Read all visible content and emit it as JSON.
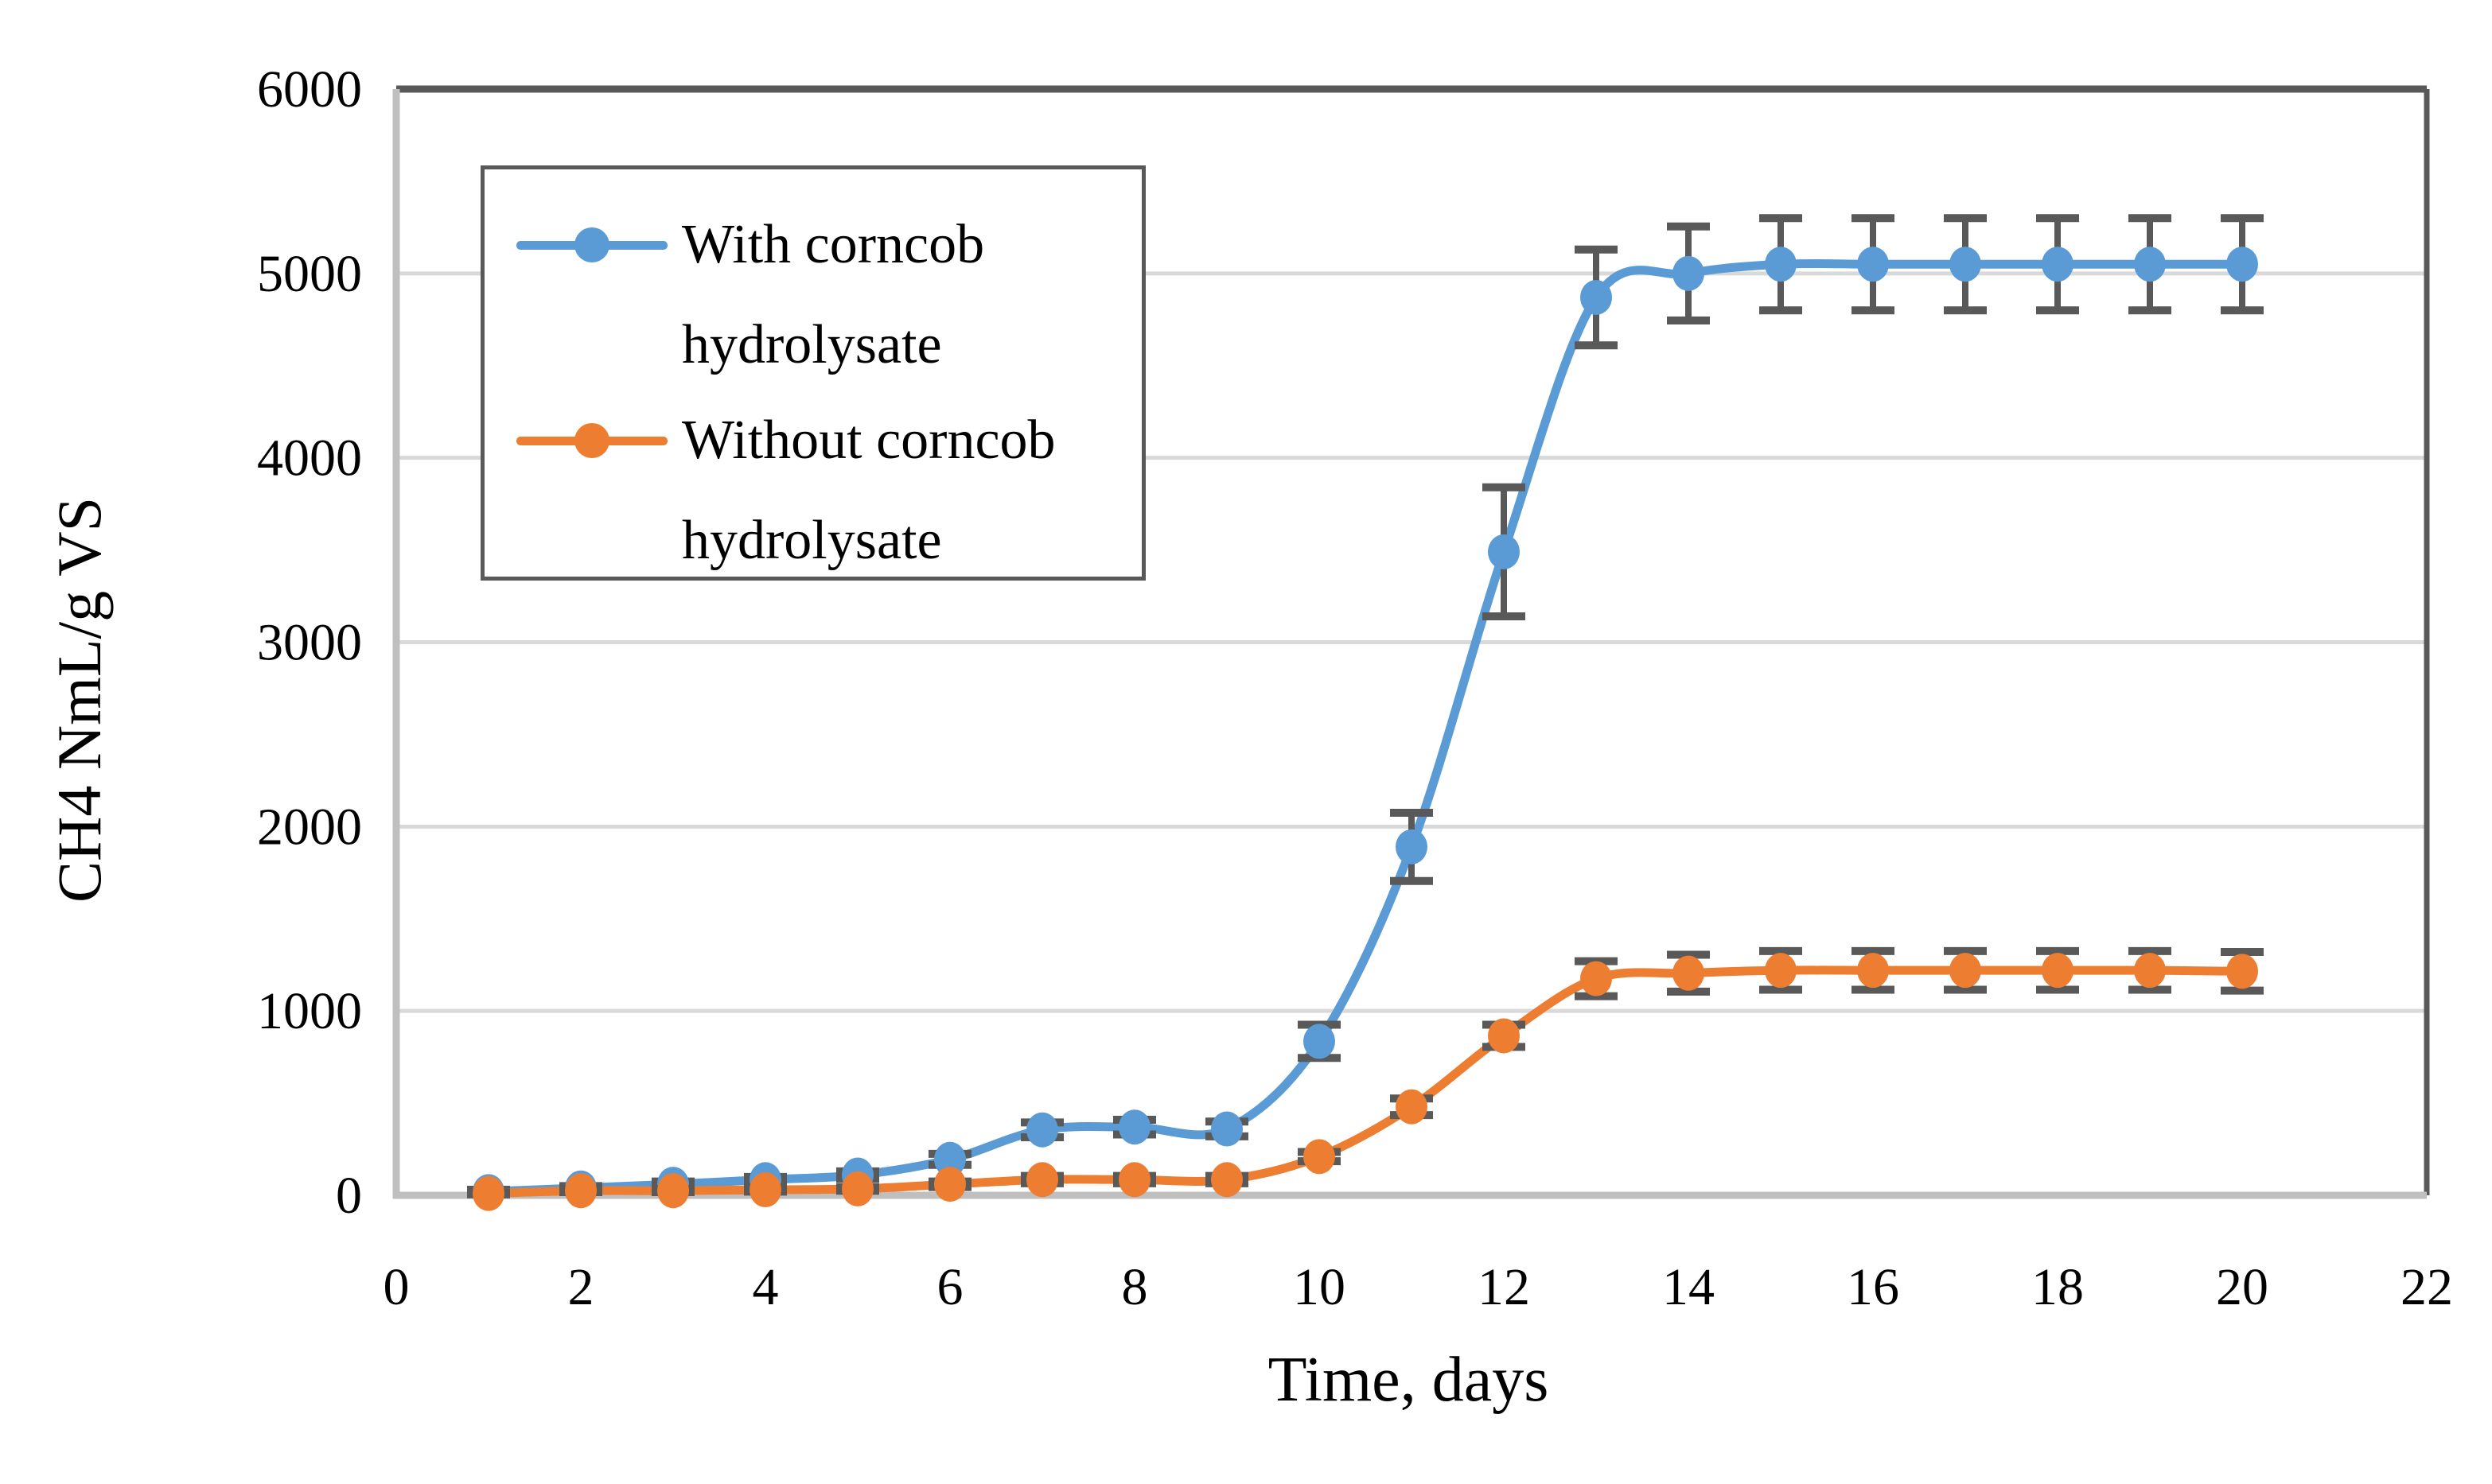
{
  "figure": {
    "background": "#ffffff"
  },
  "chart_data": {
    "type": "line",
    "title": "",
    "xlabel": "Time, days",
    "ylabel": "CH4 NmL/g VS",
    "xlim": [
      0,
      22
    ],
    "ylim": [
      0,
      6000
    ],
    "x_ticks": [
      0,
      2,
      4,
      6,
      8,
      10,
      12,
      14,
      16,
      18,
      20,
      22
    ],
    "y_ticks": [
      0,
      1000,
      2000,
      3000,
      4000,
      5000,
      6000
    ],
    "grid": "horizontal gridlines on",
    "legend_position": "top-left inside plot, boxed",
    "x": [
      1,
      2,
      3,
      4,
      5,
      6,
      7,
      8,
      9,
      10,
      11,
      12,
      13,
      14,
      15,
      16,
      17,
      18,
      19,
      20
    ],
    "series": [
      {
        "name": "With corncob hydrolysate",
        "color": "#5B9BD5",
        "values": [
          20,
          40,
          60,
          85,
          110,
          195,
          355,
          370,
          360,
          835,
          1890,
          3490,
          4870,
          5000,
          5050,
          5050,
          5050,
          5050,
          5050,
          5050
        ],
        "errors": [
          10,
          10,
          15,
          15,
          20,
          30,
          40,
          40,
          40,
          90,
          185,
          350,
          260,
          255,
          250,
          250,
          250,
          250,
          250,
          250
        ]
      },
      {
        "name": "Without corncob hydrolysate",
        "color": "#ED7D31",
        "values": [
          10,
          25,
          25,
          30,
          35,
          60,
          85,
          85,
          85,
          210,
          480,
          865,
          1175,
          1205,
          1220,
          1220,
          1220,
          1220,
          1220,
          1215
        ],
        "errors": [
          5,
          8,
          8,
          10,
          10,
          15,
          20,
          20,
          20,
          25,
          45,
          60,
          95,
          100,
          105,
          105,
          105,
          105,
          105,
          105
        ]
      }
    ],
    "style": {
      "error_bar_color": "#595959",
      "gridline_color": "#D9D9D9",
      "axis_line_color": "#BFBFBF",
      "plot_border_color": "#595959",
      "tick_label_color": "#000000"
    }
  }
}
